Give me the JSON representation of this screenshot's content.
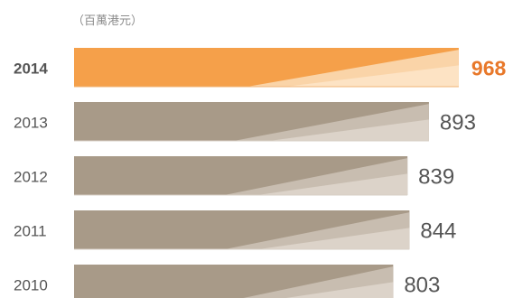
{
  "chart_data": {
    "type": "bar",
    "orientation": "horizontal",
    "unit_label": "（百萬港元）",
    "categories": [
      "2014",
      "2013",
      "2012",
      "2011",
      "2010"
    ],
    "values": [
      968,
      893,
      839,
      844,
      803
    ],
    "highlight_category": "2014",
    "colors": {
      "highlight": "#f5a04a",
      "highlight_light": "#fad4a8",
      "highlight_lighter": "#fde3c4",
      "highlight_text": "#e8782a",
      "base": "#a89a88",
      "base_light": "#c8bdb0",
      "base_lighter": "#dcd3c9",
      "category_text": "#555555",
      "value_text": "#555555",
      "unit_text": "#8c8c8c"
    }
  }
}
